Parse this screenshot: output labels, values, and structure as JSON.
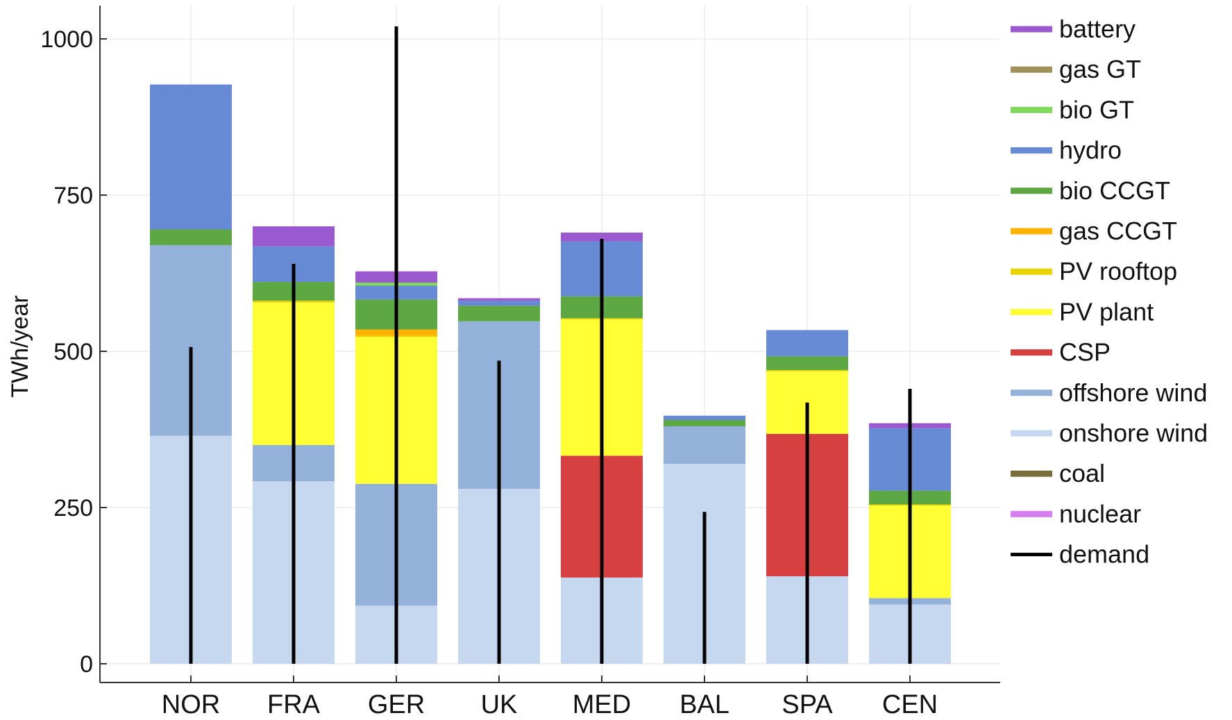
{
  "chart_data": {
    "type": "bar",
    "stacked": true,
    "title": "",
    "xlabel": "",
    "ylabel": "TWh/year",
    "ylim": [
      0,
      1050
    ],
    "yticks": [
      0,
      250,
      500,
      750,
      1000
    ],
    "grid": true,
    "legend_position": "right",
    "categories": [
      "NOR",
      "FRA",
      "GER",
      "UK",
      "MED",
      "BAL",
      "SPA",
      "CEN"
    ],
    "series": [
      {
        "name": "nuclear",
        "color": "#d67ff0",
        "values": [
          0,
          0,
          0,
          0,
          0,
          0,
          0,
          0
        ]
      },
      {
        "name": "coal",
        "color": "#7a6e3c",
        "values": [
          0,
          0,
          0,
          0,
          0,
          0,
          0,
          0
        ]
      },
      {
        "name": "onshore wind",
        "color": "#c6d8f0",
        "values": [
          365,
          292,
          93,
          280,
          138,
          320,
          140,
          95
        ]
      },
      {
        "name": "offshore wind",
        "color": "#93b1d9",
        "values": [
          305,
          58,
          195,
          268,
          0,
          60,
          0,
          10
        ]
      },
      {
        "name": "CSP",
        "color": "#d64040",
        "values": [
          0,
          0,
          0,
          0,
          195,
          0,
          228,
          0
        ]
      },
      {
        "name": "PV plant",
        "color": "#ffff33",
        "values": [
          0,
          228,
          235,
          0,
          218,
          0,
          100,
          148
        ]
      },
      {
        "name": "PV rooftop",
        "color": "#e8d400",
        "values": [
          0,
          3,
          2,
          0,
          2,
          0,
          2,
          2
        ]
      },
      {
        "name": "gas CCGT",
        "color": "#ffb300",
        "values": [
          0,
          0,
          10,
          0,
          0,
          0,
          0,
          0
        ]
      },
      {
        "name": "bio CCGT",
        "color": "#5ea843",
        "values": [
          25,
          30,
          48,
          25,
          35,
          10,
          22,
          22
        ]
      },
      {
        "name": "hydro",
        "color": "#668ad4",
        "values": [
          232,
          57,
          22,
          8,
          88,
          7,
          42,
          100
        ]
      },
      {
        "name": "bio GT",
        "color": "#80d95a",
        "values": [
          0,
          0,
          5,
          0,
          0,
          0,
          0,
          0
        ]
      },
      {
        "name": "gas GT",
        "color": "#a0905a",
        "values": [
          0,
          0,
          0,
          0,
          0,
          0,
          0,
          0
        ]
      },
      {
        "name": "battery",
        "color": "#9b59d0",
        "values": [
          0,
          32,
          18,
          4,
          14,
          0,
          0,
          8
        ]
      }
    ],
    "demand": {
      "name": "demand",
      "color": "#000000",
      "values": [
        507,
        640,
        1020,
        485,
        680,
        243,
        418,
        440
      ]
    },
    "legend": [
      "battery",
      "gas GT",
      "bio GT",
      "hydro",
      "bio CCGT",
      "gas CCGT",
      "PV rooftop",
      "PV plant",
      "CSP",
      "offshore wind",
      "onshore wind",
      "coal",
      "nuclear",
      "demand"
    ]
  }
}
